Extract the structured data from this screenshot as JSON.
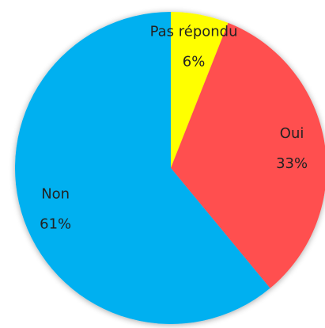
{
  "chart_data": {
    "type": "pie",
    "categories": [
      "Pas répondu",
      "Oui",
      "Non"
    ],
    "values": [
      6,
      33,
      61
    ],
    "value_labels": [
      "6%",
      "33%",
      "61%"
    ],
    "colors": [
      "#ffff00",
      "#ff5050",
      "#00b0f0"
    ]
  }
}
